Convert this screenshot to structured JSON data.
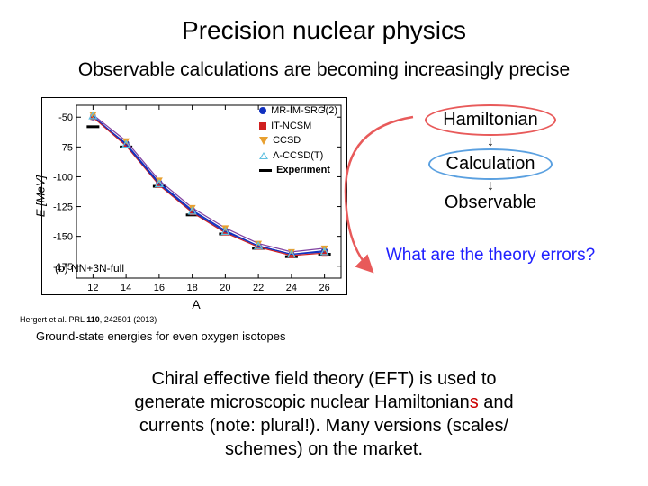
{
  "title": "Precision nuclear physics",
  "subtitle": "Observable calculations are becoming increasingly precise",
  "chart": {
    "type": "line-scatter",
    "ylabel": "E [MeV]",
    "xlabel": "A",
    "panel_label": "(b) NN+3N-full",
    "xlim": [
      11,
      27
    ],
    "ylim": [
      -185,
      -40
    ],
    "xticks": [
      12,
      14,
      16,
      18,
      20,
      22,
      24,
      26
    ],
    "yticks": [
      -50,
      -75,
      -100,
      -125,
      -150,
      -175
    ],
    "xvals": [
      12,
      14,
      16,
      18,
      20,
      22,
      24,
      26
    ],
    "series": [
      {
        "name": "MR-IM-SRG(2)",
        "marker": "circle",
        "color": "#1030c0",
        "y": [
          -50,
          -72,
          -105,
          -128,
          -145,
          -158,
          -165,
          -162
        ]
      },
      {
        "name": "IT-NCSM",
        "marker": "square",
        "color": "#d02020",
        "y": [
          -50,
          -74,
          -107,
          -130,
          -147,
          -159,
          -166,
          -164
        ]
      },
      {
        "name": "CCSD",
        "marker": "triangle-down",
        "color": "#e8a030",
        "y": [
          -48,
          -70,
          -103,
          -126,
          -143,
          -156,
          -163,
          -160
        ]
      },
      {
        "name": "Λ-CCSD(T)",
        "marker": "triangle-up-open",
        "color": "#60c0e0",
        "y": [
          -49,
          -73,
          -106,
          -129,
          -146,
          -158,
          -165,
          -163
        ]
      }
    ],
    "experiment": {
      "name": "Experiment",
      "marker": "hbar",
      "color": "#000000",
      "y": [
        -58,
        -75,
        -108,
        -132,
        -148,
        -160,
        -167,
        -165
      ]
    },
    "line_colors": [
      "#1030c0",
      "#d02020",
      "#8040a0"
    ],
    "background_color": "#ffffff",
    "border_color": "#000000",
    "tick_fontsize": 11,
    "label_fontsize": 13
  },
  "citation_prefix": "Hergert et al. PRL ",
  "citation_vol": "110",
  "citation_suffix": ", 242501 (2013)",
  "caption": "Ground-state energies for even oxygen isotopes",
  "flow": {
    "step1": "Hamiltonian",
    "step2": "Calculation",
    "step3": "Observable",
    "oval1_color": "#e85a5a",
    "oval2_color": "#5aa0e0",
    "arrow_color": "#e85a5a"
  },
  "question": "What are the theory errors?",
  "bottom_l1_a": "Chiral effective field theory (EFT) is used to",
  "bottom_l2_a": "generate microscopic nuclear Hamiltonian",
  "bottom_l2_red": "s",
  "bottom_l2_b": " and",
  "bottom_l3": "currents (note: plural!). Many versions (scales/",
  "bottom_l4": "schemes) on the market."
}
